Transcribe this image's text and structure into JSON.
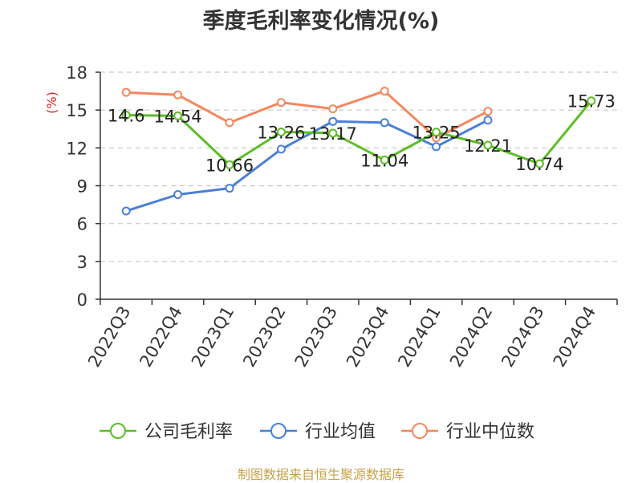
{
  "chart_data": {
    "type": "line",
    "title": "季度毛利率变化情况(%)",
    "ylabel": "(%)",
    "xlabel": "",
    "categories": [
      "2022Q3",
      "2022Q4",
      "2023Q1",
      "2023Q2",
      "2023Q3",
      "2023Q4",
      "2024Q1",
      "2024Q2",
      "2024Q3",
      "2024Q4"
    ],
    "ylim": [
      0,
      18
    ],
    "yticks": [
      0,
      3,
      6,
      9,
      12,
      15,
      18
    ],
    "grid": true,
    "legend_position": "bottom",
    "series": [
      {
        "name": "公司毛利率",
        "color": "#5cbd25",
        "show_labels": true,
        "values": [
          14.6,
          14.54,
          10.66,
          13.26,
          13.17,
          11.04,
          13.25,
          12.21,
          10.74,
          15.73
        ]
      },
      {
        "name": "行业均值",
        "color": "#4a7fd8",
        "show_labels": false,
        "values": [
          7.0,
          8.3,
          8.8,
          11.9,
          14.1,
          14.0,
          12.1,
          14.2,
          null,
          null
        ]
      },
      {
        "name": "行业中位数",
        "color": "#f5875e",
        "show_labels": false,
        "values": [
          16.4,
          16.2,
          14.0,
          15.6,
          15.1,
          16.5,
          12.8,
          14.9,
          null,
          null
        ]
      }
    ]
  },
  "source": "制图数据来自恒生聚源数据库"
}
